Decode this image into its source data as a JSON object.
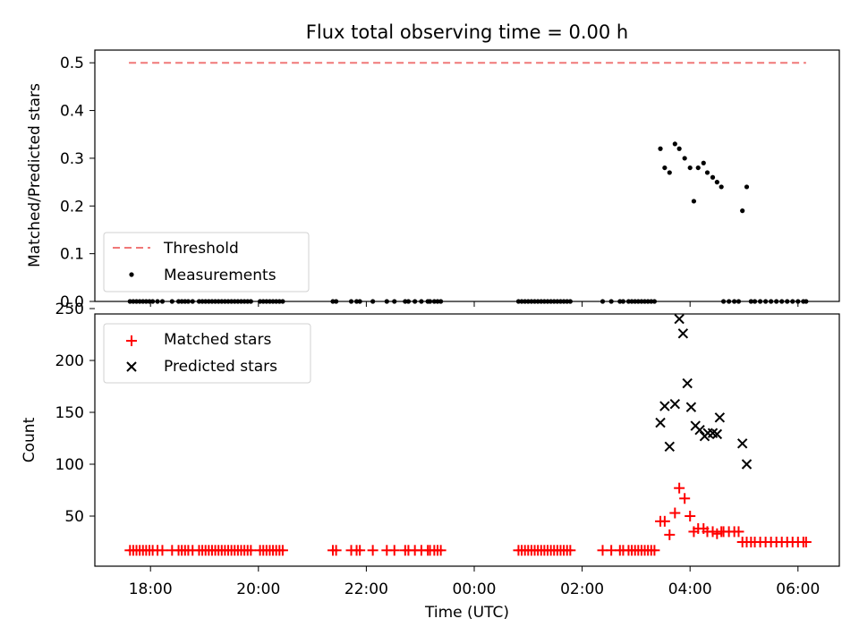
{
  "chart_data": [
    {
      "type": "scatter",
      "title": "Flux total observing time = 0.00 h",
      "xlabel": "",
      "ylabel": "Matched/Predicted stars",
      "ylim": [
        0,
        0.52
      ],
      "yticks": [
        "0.0",
        "0.1",
        "0.2",
        "0.3",
        "0.4",
        "0.5"
      ],
      "xlim": [
        -6.4,
        6.25
      ],
      "legend": {
        "placement": "lower-left",
        "entries": [
          "Threshold",
          "Measurements"
        ]
      },
      "threshold": {
        "name": "Threshold",
        "value": 0.5,
        "x": [
          -6.4,
          6.15
        ],
        "color": "#f07878"
      },
      "series": [
        {
          "name": "Measurements",
          "color": "#000000",
          "x": [
            -6.38,
            -6.32,
            -6.26,
            -6.2,
            -6.14,
            -6.08,
            -6.02,
            -5.96,
            -5.87,
            -5.78,
            -5.6,
            -5.48,
            -5.42,
            -5.36,
            -5.3,
            -5.22,
            -5.1,
            -5.04,
            -4.98,
            -4.92,
            -4.86,
            -4.8,
            -4.74,
            -4.68,
            -4.62,
            -4.56,
            -4.5,
            -4.44,
            -4.38,
            -4.32,
            -4.26,
            -4.2,
            -4.14,
            -3.97,
            -3.91,
            -3.85,
            -3.79,
            -3.73,
            -3.67,
            -3.61,
            -3.55,
            -2.62,
            -2.56,
            -2.28,
            -2.18,
            -2.12,
            -1.88,
            -1.62,
            -1.48,
            -1.28,
            -1.22,
            -1.1,
            -0.98,
            -0.86,
            -0.82,
            -0.74,
            -0.68,
            -0.62,
            0.82,
            0.88,
            0.94,
            1.0,
            1.06,
            1.12,
            1.18,
            1.24,
            1.3,
            1.36,
            1.42,
            1.48,
            1.54,
            1.6,
            1.66,
            1.72,
            1.78,
            2.38,
            2.54,
            2.7,
            2.76,
            2.86,
            2.92,
            2.98,
            3.04,
            3.1,
            3.16,
            3.22,
            3.28,
            3.34
          ],
          "y": [
            0,
            0,
            0,
            0,
            0,
            0,
            0,
            0,
            0,
            0,
            0,
            0,
            0,
            0,
            0,
            0,
            0,
            0,
            0,
            0,
            0,
            0,
            0,
            0,
            0,
            0,
            0,
            0,
            0,
            0,
            0,
            0,
            0,
            0,
            0,
            0,
            0,
            0,
            0,
            0,
            0,
            0,
            0,
            0,
            0,
            0,
            0,
            0,
            0,
            0,
            0,
            0,
            0,
            0,
            0,
            0,
            0,
            0,
            0,
            0,
            0,
            0,
            0,
            0,
            0,
            0,
            0,
            0,
            0,
            0,
            0,
            0,
            0,
            0,
            0,
            0,
            0,
            0,
            0,
            0,
            0,
            0,
            0,
            0,
            0,
            0,
            0,
            0
          ]
        },
        {
          "name": "Measurements",
          "color": "#000000",
          "x": [
            3.45,
            3.53,
            3.62,
            3.72,
            3.8,
            3.9,
            4.0,
            4.07,
            4.15,
            4.25,
            4.32,
            4.42,
            4.5,
            4.58,
            4.97,
            5.05,
            4.62,
            4.72,
            4.82,
            4.9,
            5.13,
            5.2,
            5.3,
            5.4,
            5.5,
            5.6,
            5.7,
            5.8,
            5.9,
            6.0,
            6.1,
            6.15
          ],
          "y": [
            0.32,
            0.28,
            0.27,
            0.33,
            0.32,
            0.3,
            0.28,
            0.21,
            0.28,
            0.29,
            0.27,
            0.26,
            0.25,
            0.24,
            0.19,
            0.24,
            0,
            0,
            0,
            0,
            0,
            0,
            0,
            0,
            0,
            0,
            0,
            0,
            0,
            0,
            0,
            0
          ]
        }
      ]
    },
    {
      "type": "scatter",
      "title": "",
      "xlabel": "Time (UTC)",
      "ylabel": "Count",
      "ylim": [
        8,
        250
      ],
      "yticks": [
        "50",
        "100",
        "150",
        "200",
        "250"
      ],
      "xlim": [
        -6.4,
        6.25
      ],
      "xticks": [
        "18:00",
        "20:00",
        "22:00",
        "00:00",
        "02:00",
        "04:00",
        "06:00"
      ],
      "legend": {
        "placement": "top-left",
        "entries": [
          "Matched stars",
          "Predicted stars"
        ]
      },
      "series": [
        {
          "name": "Matched stars",
          "color": "#ff0000",
          "marker": "plus",
          "x": [
            -6.38,
            -6.32,
            -6.26,
            -6.2,
            -6.14,
            -6.08,
            -6.02,
            -5.96,
            -5.87,
            -5.78,
            -5.6,
            -5.48,
            -5.42,
            -5.36,
            -5.3,
            -5.22,
            -5.1,
            -5.04,
            -4.98,
            -4.92,
            -4.86,
            -4.8,
            -4.74,
            -4.68,
            -4.62,
            -4.56,
            -4.5,
            -4.44,
            -4.38,
            -4.32,
            -4.26,
            -4.2,
            -4.14,
            -3.97,
            -3.91,
            -3.85,
            -3.79,
            -3.73,
            -3.67,
            -3.61,
            -3.55,
            -2.62,
            -2.56,
            -2.28,
            -2.18,
            -2.12,
            -1.88,
            -1.62,
            -1.48,
            -1.28,
            -1.22,
            -1.1,
            -0.98,
            -0.86,
            -0.82,
            -0.74,
            -0.68,
            -0.62,
            0.82,
            0.88,
            0.94,
            1.0,
            1.06,
            1.12,
            1.18,
            1.24,
            1.3,
            1.36,
            1.42,
            1.48,
            1.54,
            1.6,
            1.66,
            1.72,
            1.78,
            2.38,
            2.54,
            2.7,
            2.76,
            2.86,
            2.92,
            2.98,
            3.04,
            3.1,
            3.16,
            3.22,
            3.28,
            3.34,
            3.45,
            3.53,
            3.62,
            3.72,
            3.8,
            3.9,
            4.0,
            4.07,
            4.15,
            4.25,
            4.32,
            4.42,
            4.5,
            4.58,
            4.62,
            4.72,
            4.82,
            4.9,
            4.97,
            5.05,
            5.13,
            5.2,
            5.3,
            5.4,
            5.5,
            5.6,
            5.7,
            5.8,
            5.9,
            6.0,
            6.1,
            6.15
          ],
          "y": [
            17,
            17,
            17,
            17,
            17,
            17,
            17,
            17,
            17,
            17,
            17,
            17,
            17,
            17,
            17,
            17,
            17,
            17,
            17,
            17,
            17,
            17,
            17,
            17,
            17,
            17,
            17,
            17,
            17,
            17,
            17,
            17,
            17,
            17,
            17,
            17,
            17,
            17,
            17,
            17,
            17,
            17,
            17,
            17,
            17,
            17,
            17,
            17,
            17,
            17,
            17,
            17,
            17,
            17,
            17,
            17,
            17,
            17,
            17,
            17,
            17,
            17,
            17,
            17,
            17,
            17,
            17,
            17,
            17,
            17,
            17,
            17,
            17,
            17,
            17,
            17,
            17,
            17,
            17,
            17,
            17,
            17,
            17,
            17,
            17,
            17,
            17,
            17,
            45,
            45,
            32,
            53,
            77,
            67,
            50,
            35,
            38,
            38,
            35,
            35,
            33,
            35,
            35,
            35,
            35,
            35,
            25,
            25,
            25,
            25,
            25,
            25,
            25,
            25,
            25,
            25,
            25,
            25,
            25,
            25
          ]
        },
        {
          "name": "Predicted stars",
          "color": "#000000",
          "marker": "x",
          "x": [
            3.45,
            3.53,
            3.62,
            3.72,
            3.8,
            3.87,
            3.95,
            4.02,
            4.1,
            4.18,
            4.27,
            4.33,
            4.42,
            4.5,
            4.55,
            4.97,
            5.05
          ],
          "y": [
            140,
            156,
            117,
            158,
            240,
            226,
            178,
            155,
            137,
            133,
            127,
            130,
            130,
            129,
            145,
            120,
            100
          ]
        }
      ]
    }
  ]
}
